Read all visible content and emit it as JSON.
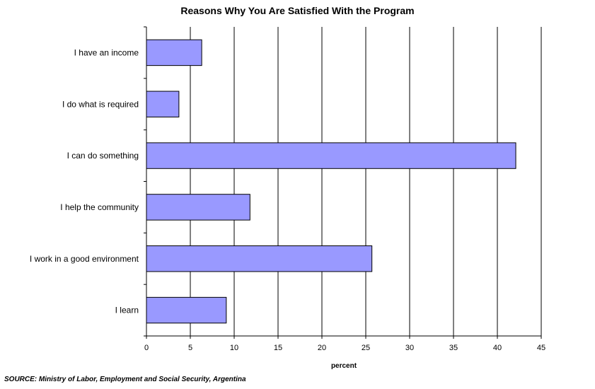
{
  "chart_data": {
    "type": "bar",
    "orientation": "horizontal",
    "title": "Reasons Why You Are Satisfied With the Program",
    "xlabel": "percent",
    "ylabel": "",
    "categories": [
      "I have an income",
      "I do what is required",
      "I can do something",
      "I help the community",
      "I work in a good environment",
      "I learn"
    ],
    "values": [
      6.3,
      3.7,
      42.1,
      11.8,
      25.7,
      9.1
    ],
    "xlim": [
      0,
      45
    ],
    "xticks": [
      0,
      5,
      10,
      15,
      20,
      25,
      30,
      35,
      40,
      45
    ],
    "grid": "vertical",
    "legend": "none",
    "bar_color": "#9999ff",
    "bar_edge_color": "#000000"
  },
  "source": "SOURCE: Ministry of Labor, Employment and Social Security, Argentina"
}
